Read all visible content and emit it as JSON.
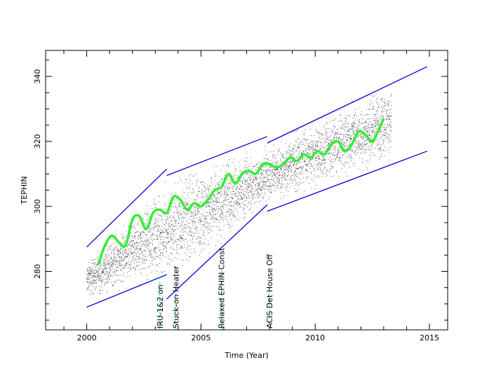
{
  "chart_data": {
    "type": "scatter",
    "title": "",
    "xlabel": "Time (Year)",
    "ylabel": "TEPHIN",
    "xlim": [
      1998.2,
      2015.8
    ],
    "ylim": [
      262,
      348
    ],
    "xticks": [
      2000,
      2005,
      2010,
      2015
    ],
    "yticks": [
      280,
      300,
      320,
      340
    ],
    "xtick_labels": [
      "2000",
      "2005",
      "2010",
      "2015"
    ],
    "ytick_labels": [
      "280",
      "300",
      "320",
      "340"
    ],
    "grid": false,
    "legend": "none",
    "colors": {
      "points": "#000000",
      "smooth": "#33ee33",
      "envelope": "#0000dd",
      "event": "#33dddd"
    },
    "envelope_lines": [
      {
        "x": [
          2000.0,
          2003.5
        ],
        "y": [
          287.5,
          311.5
        ]
      },
      {
        "x": [
          2000.0,
          2003.5
        ],
        "y": [
          269.0,
          279.0
        ]
      },
      {
        "x": [
          2003.5,
          2007.9
        ],
        "y": [
          309.5,
          321.5
        ]
      },
      {
        "x": [
          2003.5,
          2007.9
        ],
        "y": [
          271.5,
          300.5
        ]
      },
      {
        "x": [
          2007.9,
          2014.9
        ],
        "y": [
          319.5,
          343.0
        ]
      },
      {
        "x": [
          2007.9,
          2014.9
        ],
        "y": [
          298.5,
          317.0
        ]
      }
    ],
    "smooth_fit": {
      "x": [
        2000.5,
        2000.8,
        2001.1,
        2001.4,
        2001.7,
        2002.0,
        2002.3,
        2002.6,
        2002.9,
        2003.2,
        2003.5,
        2003.8,
        2004.1,
        2004.4,
        2004.7,
        2005.0,
        2005.3,
        2005.6,
        2005.9,
        2006.2,
        2006.5,
        2006.8,
        2007.1,
        2007.4,
        2007.7,
        2008.0,
        2008.3,
        2008.6,
        2008.9,
        2009.2,
        2009.5,
        2009.8,
        2010.1,
        2010.4,
        2010.7,
        2011.0,
        2011.3,
        2011.6,
        2011.9,
        2012.2,
        2012.5,
        2012.8,
        2013.0
      ],
      "y": [
        282,
        288,
        291,
        289,
        288,
        296,
        297,
        293,
        298,
        299,
        298,
        303,
        302,
        299,
        301,
        300,
        302,
        305,
        306,
        310,
        307,
        310,
        311,
        310,
        313,
        313,
        312,
        313,
        315,
        314,
        316,
        315,
        317,
        316,
        319,
        320,
        317,
        319,
        323,
        322,
        320,
        324,
        327
      ]
    },
    "scatter_band": {
      "x_start": 2000.0,
      "x_end": 2013.35,
      "note_low": [
        [
          2000.0,
          271
        ],
        [
          2003.5,
          278
        ],
        [
          2003.6,
          275
        ],
        [
          2007.9,
          300
        ],
        [
          2013.3,
          314
        ]
      ],
      "note_high": [
        [
          2000.0,
          284
        ],
        [
          2003.5,
          308
        ],
        [
          2003.6,
          310
        ],
        [
          2007.9,
          319
        ],
        [
          2013.3,
          339
        ]
      ]
    },
    "events": [
      {
        "label": "IRU-1&2 on",
        "x": 2003.2,
        "y_top": 279
      },
      {
        "label": "Stuck-on Heater",
        "x": 2003.9,
        "y_top": 276
      },
      {
        "label": "Relaxed EPHIN Const",
        "x": 2005.9,
        "y_top": 281
      },
      {
        "label": "ACIS Det House Off",
        "x": 2008.0,
        "y_top": 276
      }
    ]
  }
}
